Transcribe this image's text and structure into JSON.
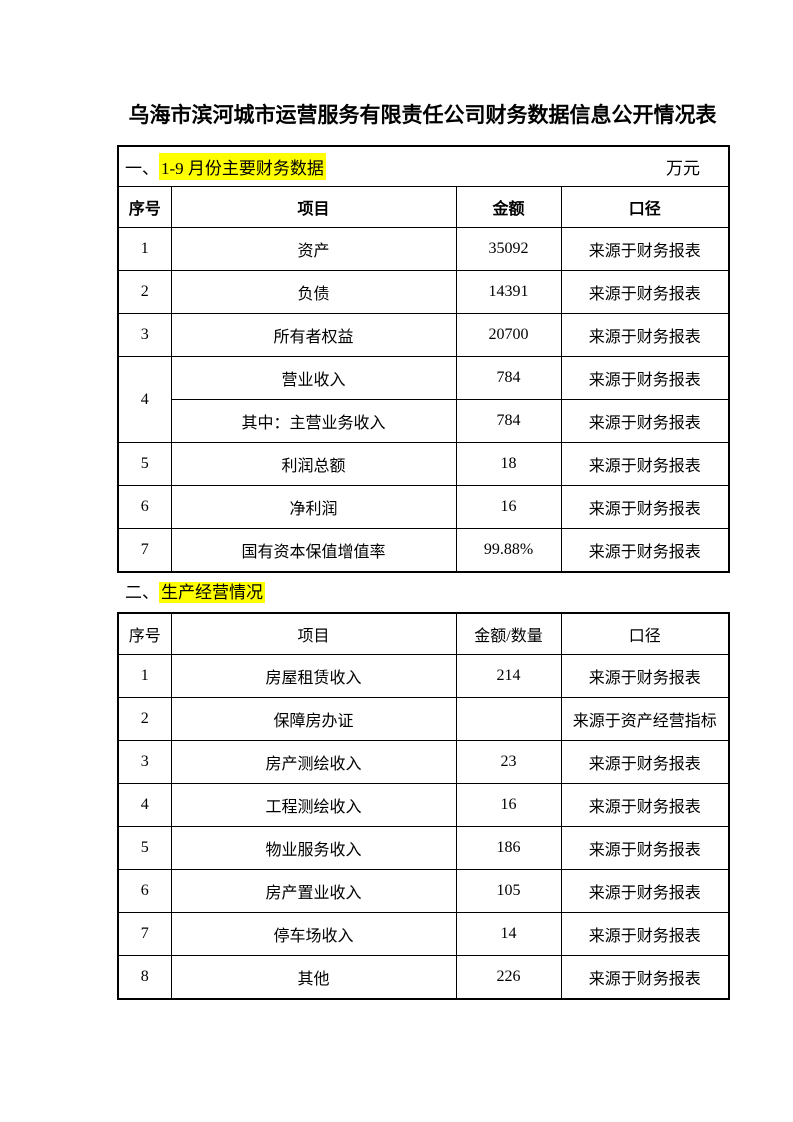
{
  "document": {
    "title": "乌海市滨河城市运营服务有限责任公司财务数据信息公开情况表"
  },
  "colors": {
    "highlight": "#FFFF00",
    "text": "#000000",
    "border": "#000000",
    "background": "#FFFFFF"
  },
  "section1": {
    "number": "一、",
    "heading": "1-9 月份主要财务数据",
    "unit": "万元",
    "columns": [
      "序号",
      "项目",
      "金额",
      "口径"
    ],
    "rows": [
      {
        "no": "1",
        "item": "资产",
        "amount": "35092",
        "source": "来源于财务报表"
      },
      {
        "no": "2",
        "item": "负债",
        "amount": "14391",
        "source": "来源于财务报表"
      },
      {
        "no": "3",
        "item": "所有者权益",
        "amount": "20700",
        "source": "来源于财务报表"
      },
      {
        "no": "4",
        "item": "营业收入",
        "amount": "784",
        "source": "来源于财务报表"
      },
      {
        "no": "",
        "item": "其中：主营业务收入",
        "amount": "784",
        "source": "来源于财务报表"
      },
      {
        "no": "5",
        "item": "利润总额",
        "amount": "18",
        "source": "来源于财务报表"
      },
      {
        "no": "6",
        "item": "净利润",
        "amount": "16",
        "source": "来源于财务报表"
      },
      {
        "no": "7",
        "item": "国有资本保值增值率",
        "amount": "99.88%",
        "source": "来源于财务报表"
      }
    ]
  },
  "section2": {
    "number": "二、",
    "heading": "生产经营情况",
    "columns": [
      "序号",
      "项目",
      "金额/数量",
      "口径"
    ],
    "rows": [
      {
        "no": "1",
        "item": "房屋租赁收入",
        "amount": "214",
        "source": "来源于财务报表"
      },
      {
        "no": "2",
        "item": "保障房办证",
        "amount": "",
        "source": "来源于资产经营指标"
      },
      {
        "no": "3",
        "item": "房产测绘收入",
        "amount": "23",
        "source": "来源于财务报表"
      },
      {
        "no": "4",
        "item": "工程测绘收入",
        "amount": "16",
        "source": "来源于财务报表"
      },
      {
        "no": "5",
        "item": "物业服务收入",
        "amount": "186",
        "source": "来源于财务报表"
      },
      {
        "no": "6",
        "item": "房产置业收入",
        "amount": "105",
        "source": "来源于财务报表"
      },
      {
        "no": "7",
        "item": "停车场收入",
        "amount": "14",
        "source": "来源于财务报表"
      },
      {
        "no": "8",
        "item": "其他",
        "amount": "226",
        "source": "来源于财务报表"
      }
    ]
  }
}
